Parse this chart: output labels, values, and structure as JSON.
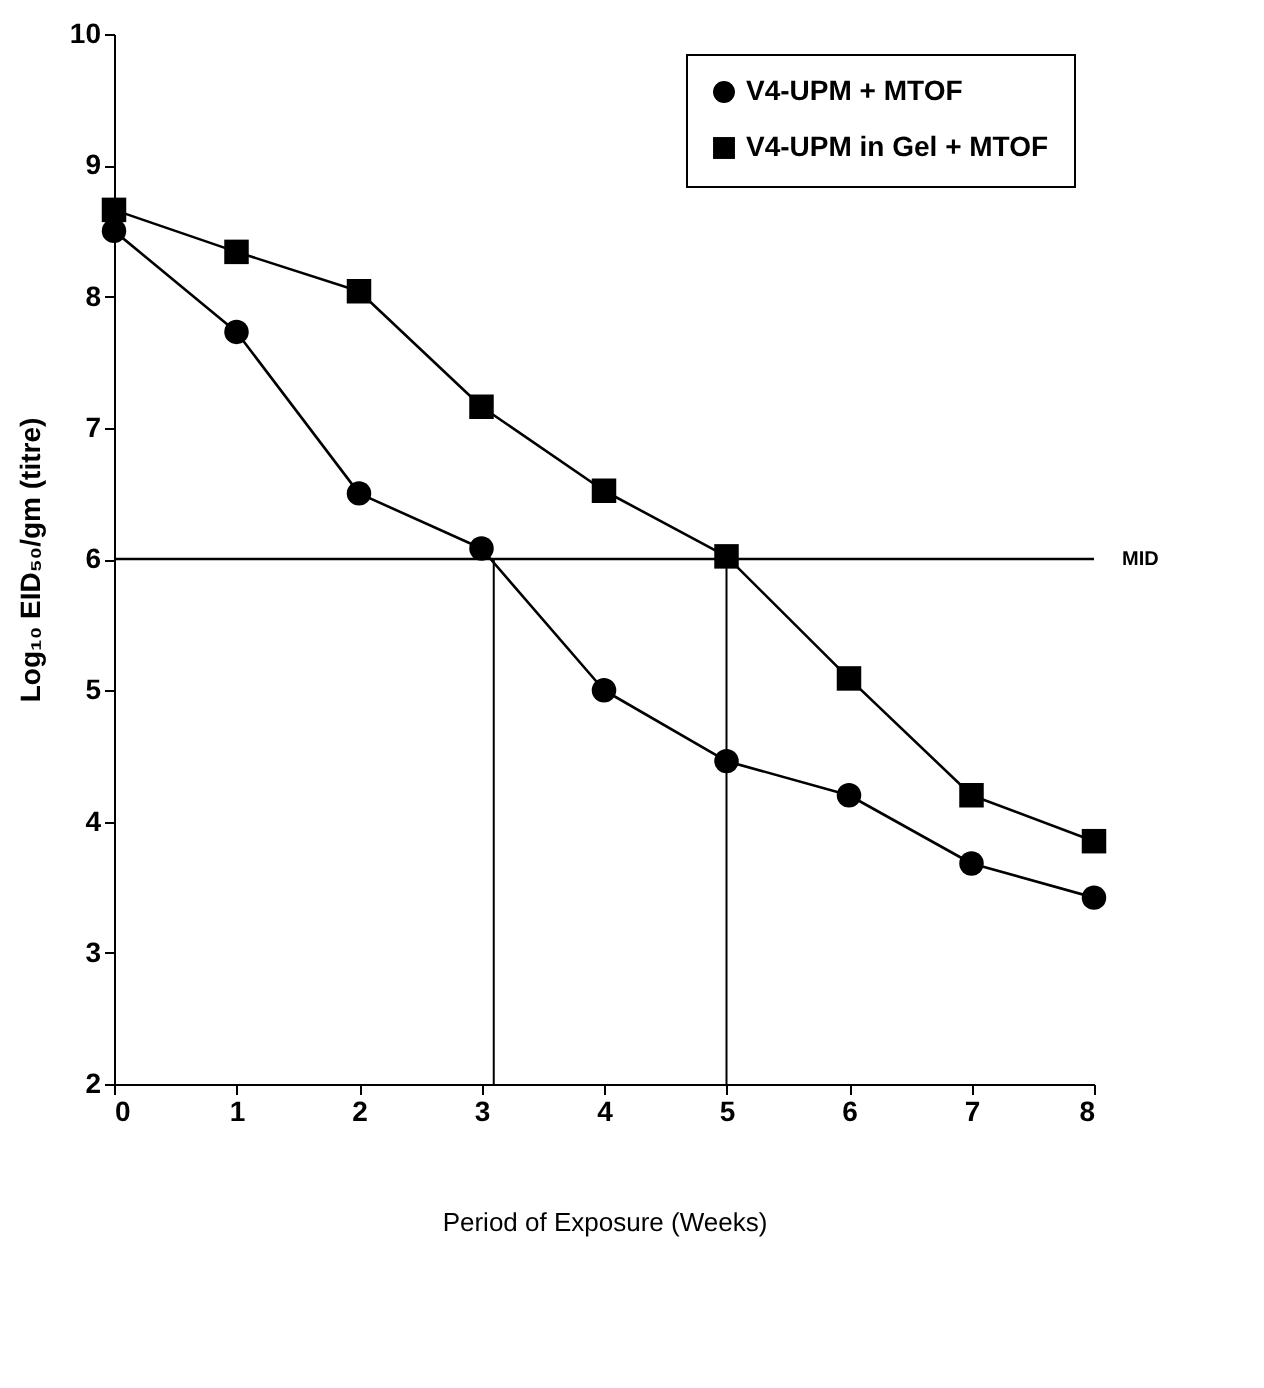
{
  "chart_data": {
    "type": "line",
    "xlabel": "Period of Exposure (Weeks)",
    "ylabel": "Log₁₀ EID₅₀/gm (titre)",
    "x": [
      0,
      1,
      2,
      3,
      4,
      5,
      6,
      7,
      8
    ],
    "series": [
      {
        "name": "V4-UPM + MTOF",
        "color": "#000000",
        "marker": "circle",
        "values": [
          8.5,
          7.73,
          6.5,
          6.08,
          5.0,
          4.46,
          4.2,
          3.68,
          3.42
        ]
      },
      {
        "name": "V4-UPM in Gel + MTOF",
        "color": "#000000",
        "marker": "square",
        "values": [
          8.66,
          8.34,
          8.04,
          7.16,
          6.52,
          6.02,
          5.09,
          4.2,
          3.85
        ]
      }
    ],
    "xlim": [
      0,
      8
    ],
    "xticks": [
      0,
      1,
      2,
      3,
      4,
      5,
      6,
      7,
      8
    ],
    "ylim": [
      2,
      10
    ],
    "yticks": [
      2,
      3,
      4,
      5,
      6,
      7,
      8,
      9,
      10
    ],
    "ref_lines": [
      {
        "axis": "y",
        "value": 6,
        "label": "MID"
      },
      {
        "axis": "x",
        "value": 3.1,
        "label": null
      },
      {
        "axis": "x",
        "value": 5,
        "label": null
      }
    ],
    "grid": false,
    "legend": "top right",
    "line_style": "solid"
  }
}
